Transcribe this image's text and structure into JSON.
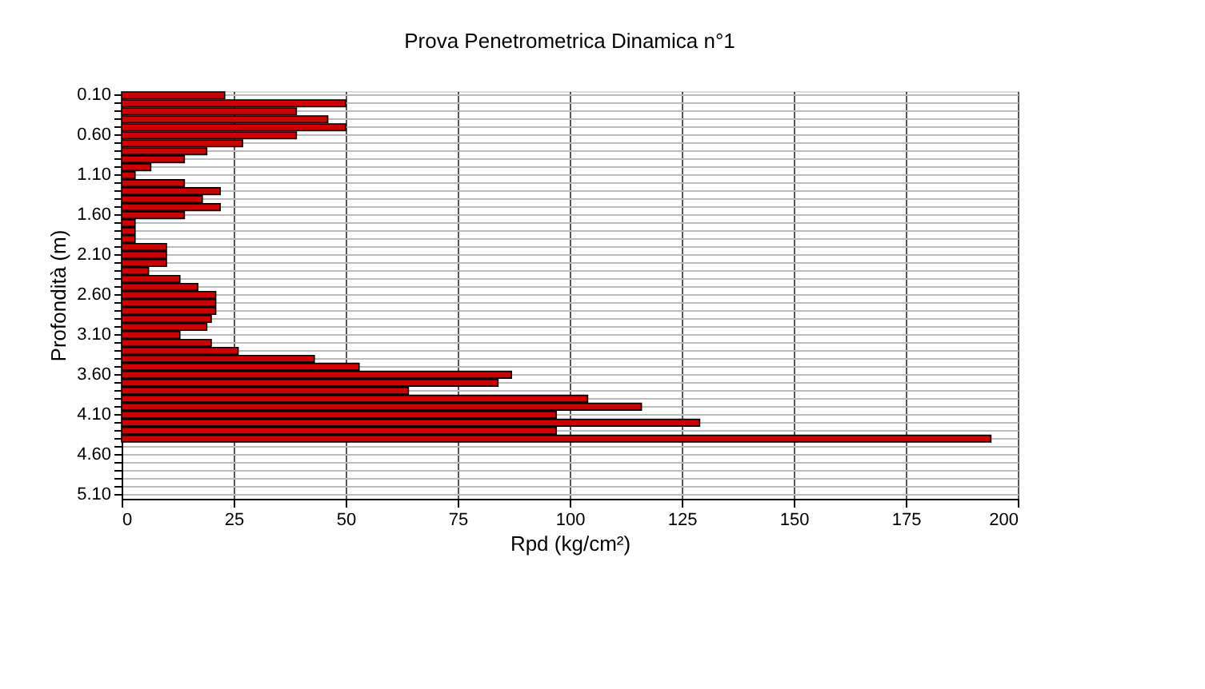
{
  "chart_data": {
    "type": "bar",
    "orientation": "horizontal",
    "title": "Prova Penetrometrica Dinamica n°1",
    "xlabel": "Rpd (kg/cm²)",
    "ylabel": "Profondità (m)",
    "categories": [
      "0.10",
      null,
      null,
      null,
      null,
      "0.60",
      null,
      null,
      null,
      null,
      "1.10",
      null,
      null,
      null,
      null,
      "1.60",
      null,
      null,
      null,
      null,
      "2.10",
      null,
      null,
      null,
      null,
      "2.60",
      null,
      null,
      null,
      null,
      "3.10",
      null,
      null,
      null,
      null,
      "3.60",
      null,
      null,
      null,
      null,
      "4.10",
      null,
      null,
      null,
      null,
      "4.60",
      null,
      null,
      null,
      null,
      "5.10"
    ],
    "values": [
      23,
      50,
      39,
      46,
      50,
      39,
      27,
      19,
      14,
      6.5,
      3,
      14,
      22,
      18,
      22,
      14,
      3,
      3,
      3,
      10,
      10,
      10,
      6,
      13,
      17,
      21,
      21,
      21,
      20,
      19,
      13,
      20,
      26,
      43,
      53,
      87,
      84,
      64,
      104,
      116,
      97,
      129,
      97,
      194,
      null,
      null,
      null,
      null,
      null,
      null,
      null
    ],
    "color": "#cc0000",
    "xlim": [
      0,
      200
    ],
    "xticks": [
      0,
      25,
      50,
      75,
      100,
      125,
      150,
      175,
      200
    ],
    "grid": true
  }
}
